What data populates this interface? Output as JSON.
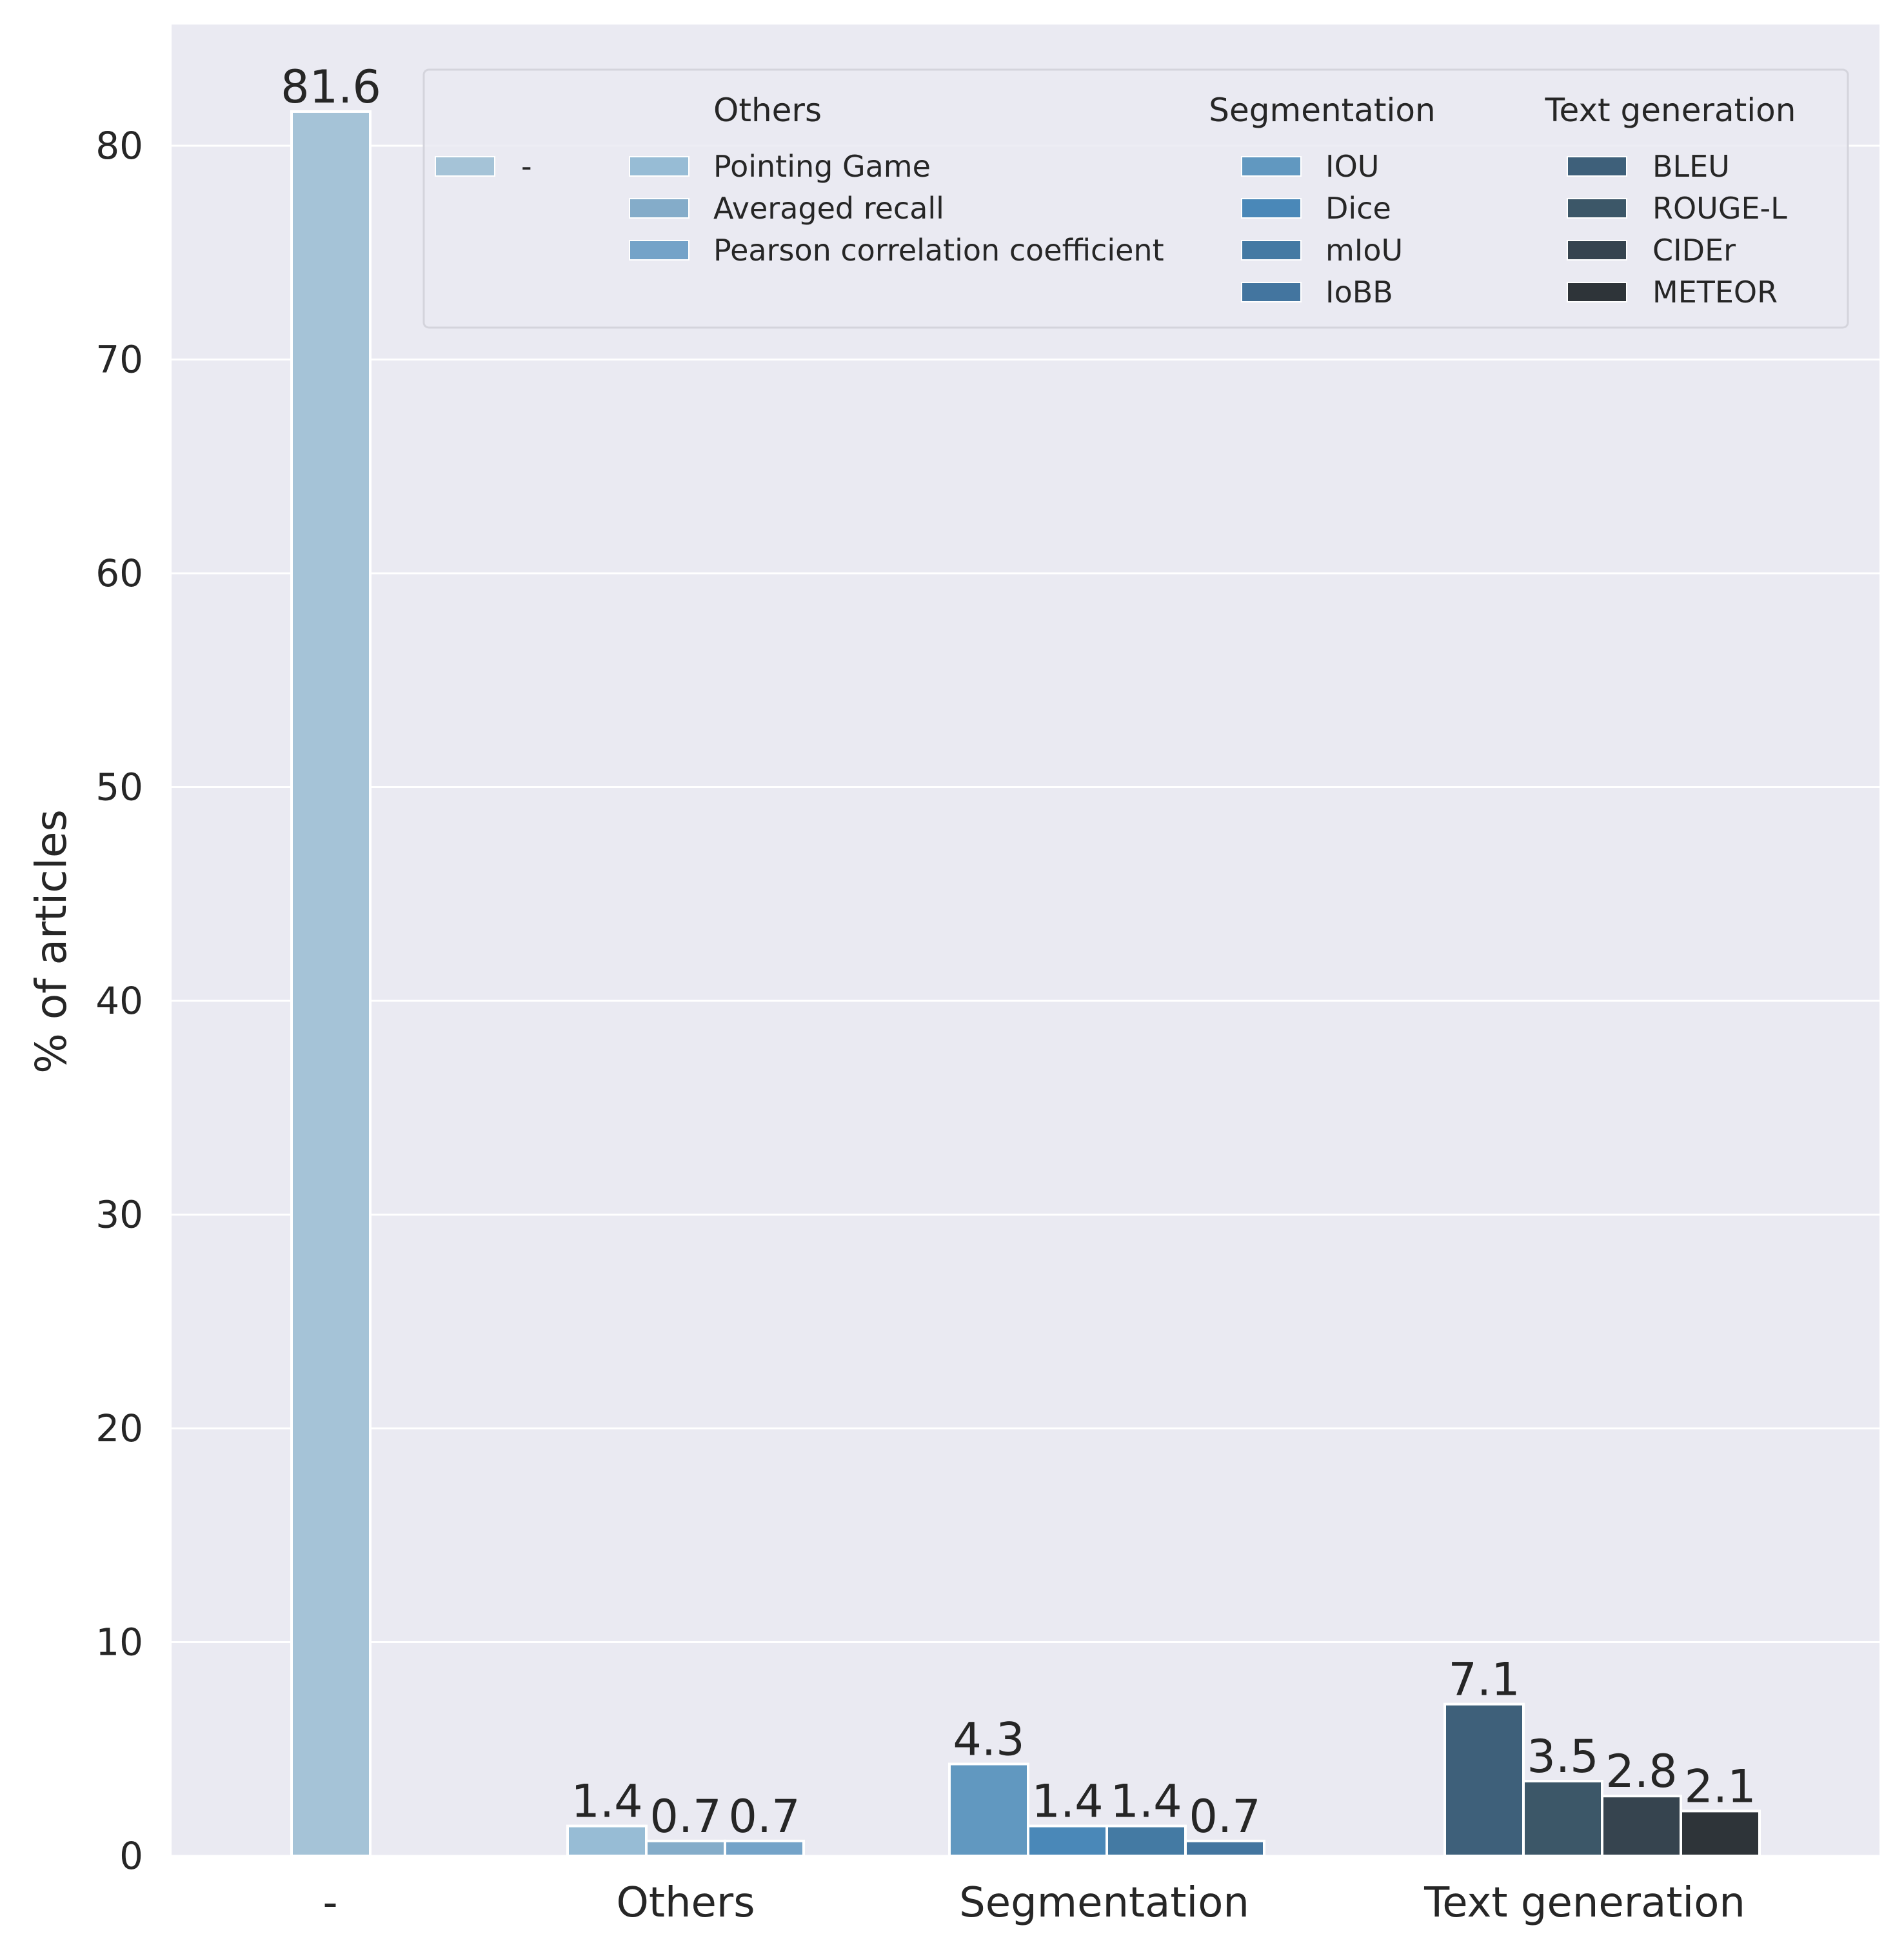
{
  "chart_data": {
    "type": "bar",
    "title": "",
    "xlabel": "",
    "ylabel": "% of articles",
    "ylim": [
      0,
      86
    ],
    "yticks": [
      0,
      10,
      20,
      30,
      40,
      50,
      60,
      70,
      80
    ],
    "grid": true,
    "legend_position": "top-right",
    "categories": [
      "-",
      "Others",
      "Segmentation",
      "Text generation"
    ],
    "groups": [
      {
        "category": "-",
        "bars": [
          {
            "label": "-",
            "value": 81.6,
            "value_label": "81.6",
            "color": "#a5c3d7"
          }
        ]
      },
      {
        "category": "Others",
        "bars": [
          {
            "label": "Pointing Game",
            "value": 1.4,
            "value_label": "1.4",
            "color": "#97bcd5"
          },
          {
            "label": "Averaged recall",
            "value": 0.7,
            "value_label": "0.7",
            "color": "#84acc9"
          },
          {
            "label": "Pearson correlation coefficient",
            "value": 0.7,
            "value_label": "0.7",
            "color": "#74a3c8"
          }
        ]
      },
      {
        "category": "Segmentation",
        "bars": [
          {
            "label": "IOU",
            "value": 4.3,
            "value_label": "4.3",
            "color": "#6198c0"
          },
          {
            "label": "Dice",
            "value": 1.4,
            "value_label": "1.4",
            "color": "#4a88b8"
          },
          {
            "label": "mIoU",
            "value": 1.4,
            "value_label": "1.4",
            "color": "#447aa3"
          },
          {
            "label": "IoBB",
            "value": 0.7,
            "value_label": "0.7",
            "color": "#43759f"
          }
        ]
      },
      {
        "category": "Text generation",
        "bars": [
          {
            "label": "BLEU",
            "value": 7.1,
            "value_label": "7.1",
            "color": "#3e607a"
          },
          {
            "label": "ROUGE-L",
            "value": 3.5,
            "value_label": "3.5",
            "color": "#3c5768"
          },
          {
            "label": "CIDEr",
            "value": 2.8,
            "value_label": "2.8",
            "color": "#36444f"
          },
          {
            "label": "METEOR",
            "value": 2.1,
            "value_label": "2.1",
            "color": "#2e3439"
          }
        ]
      }
    ],
    "legend": {
      "columns": [
        {
          "title": "",
          "entries": [
            "-"
          ]
        },
        {
          "title": "Others",
          "entries": [
            "Pointing Game",
            "Averaged recall",
            "Pearson correlation coefficient"
          ]
        },
        {
          "title": "Segmentation",
          "entries": [
            "IOU",
            "Dice",
            "mIoU",
            "IoBB"
          ]
        },
        {
          "title": "Text generation",
          "entries": [
            "BLEU",
            "ROUGE-L",
            "CIDEr",
            "METEOR"
          ]
        }
      ]
    },
    "colors": {
      "plot_background": "#eaeaf2",
      "grid": "#ffffff",
      "text": "#262626"
    }
  }
}
